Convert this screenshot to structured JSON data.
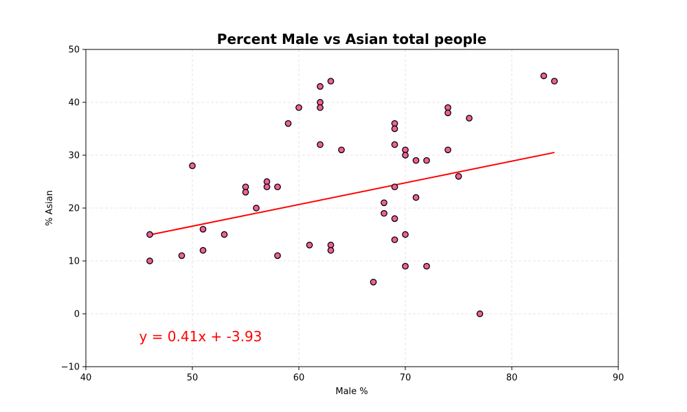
{
  "chart_data": {
    "type": "scatter",
    "title": "Percent Male vs Asian total people",
    "xlabel": "Male %",
    "ylabel": "% Asian",
    "xlim": [
      40,
      90
    ],
    "ylim": [
      -10,
      50
    ],
    "xticks": [
      40,
      50,
      60,
      70,
      80,
      90
    ],
    "yticks": [
      -10,
      0,
      10,
      20,
      30,
      40,
      50
    ],
    "grid": true,
    "colors": {
      "marker_fill": "#f0609a",
      "marker_edge": "#000000",
      "line": "#ff0000",
      "equation": "#ff0000",
      "grid": "#dddddd"
    },
    "points": [
      [
        46,
        15
      ],
      [
        46,
        10
      ],
      [
        49,
        11
      ],
      [
        50,
        28
      ],
      [
        51,
        16
      ],
      [
        51,
        12
      ],
      [
        53,
        15
      ],
      [
        55,
        24
      ],
      [
        55,
        23
      ],
      [
        56,
        20
      ],
      [
        57,
        25
      ],
      [
        57,
        24
      ],
      [
        58,
        24
      ],
      [
        58,
        11
      ],
      [
        59,
        36
      ],
      [
        60,
        39
      ],
      [
        61,
        13
      ],
      [
        62,
        43
      ],
      [
        62,
        40
      ],
      [
        62,
        39
      ],
      [
        62,
        32
      ],
      [
        63,
        44
      ],
      [
        63,
        13
      ],
      [
        63,
        12
      ],
      [
        64,
        31
      ],
      [
        67,
        6
      ],
      [
        68,
        21
      ],
      [
        68,
        19
      ],
      [
        69,
        36
      ],
      [
        69,
        35
      ],
      [
        69,
        32
      ],
      [
        69,
        24
      ],
      [
        69,
        18
      ],
      [
        69,
        14
      ],
      [
        70,
        31
      ],
      [
        70,
        30
      ],
      [
        70,
        15
      ],
      [
        70,
        9
      ],
      [
        71,
        29
      ],
      [
        71,
        22
      ],
      [
        72,
        29
      ],
      [
        72,
        9
      ],
      [
        74,
        39
      ],
      [
        74,
        38
      ],
      [
        74,
        31
      ],
      [
        75,
        26
      ],
      [
        76,
        37
      ],
      [
        77,
        0
      ],
      [
        83,
        45
      ],
      [
        84,
        44
      ]
    ],
    "regression": {
      "slope": 0.41,
      "intercept": -3.93,
      "x_start": 46,
      "x_end": 84
    },
    "equation_text": "y = 0.41x + -3.93",
    "equation_position": [
      45,
      -4.3
    ]
  }
}
